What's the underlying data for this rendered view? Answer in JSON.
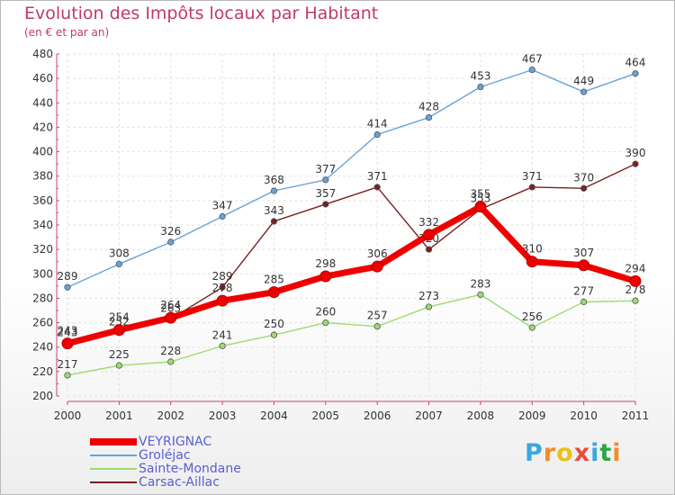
{
  "title": "Evolution des Impôts locaux par Habitant",
  "subtitle": "(en € et par an)",
  "logo": {
    "letters": [
      "P",
      "r",
      "o",
      "x",
      "i",
      "t",
      "i"
    ],
    "colors": [
      "#3aa7e0",
      "#f28c28",
      "#e8c21a",
      "#e74c3c",
      "#3aa7e0",
      "#2ea34b",
      "#f28c28"
    ]
  },
  "chart_data": {
    "type": "line",
    "title": "Evolution des Impôts locaux par Habitant",
    "subtitle": "(en € et par an)",
    "x": [
      "2000",
      "2001",
      "2002",
      "2003",
      "2004",
      "2005",
      "2006",
      "2007",
      "2008",
      "2009",
      "2010",
      "2011"
    ],
    "ylim": [
      200,
      480
    ],
    "yticks": [
      200,
      220,
      240,
      260,
      280,
      300,
      320,
      340,
      360,
      380,
      400,
      420,
      440,
      460,
      480
    ],
    "grid": true,
    "legend_position": "bottom-left",
    "series": [
      {
        "name": "Groléjac",
        "color": "#6aa3d5",
        "values": [
          289,
          308,
          326,
          347,
          368,
          377,
          414,
          428,
          453,
          467,
          449,
          464
        ],
        "labels": [
          "289",
          "308",
          "326",
          "347",
          "368",
          "377",
          "414",
          "428",
          "453",
          "467",
          "449",
          "464"
        ]
      },
      {
        "name": "Carsac-Aillac",
        "color": "#7a2020",
        "values": [
          243,
          252,
          263,
          289,
          343,
          357,
          371,
          320,
          353,
          371,
          370,
          390
        ],
        "labels": [
          "243",
          "252",
          "263",
          "289",
          "343",
          "357",
          "371",
          "320",
          "353",
          "371",
          "370",
          "390"
        ]
      },
      {
        "name": "Sainte-Mondane",
        "color": "#9ddb6f",
        "values": [
          217,
          225,
          228,
          241,
          250,
          260,
          257,
          273,
          283,
          256,
          277,
          278
        ],
        "labels": [
          "217",
          "225",
          "228",
          "241",
          "250",
          "260",
          "257",
          "273",
          "283",
          "256",
          "277",
          "278"
        ]
      },
      {
        "name": "VEYRIGNAC",
        "color": "#ee0000",
        "values": [
          243,
          254,
          264,
          278,
          285,
          298,
          306,
          332,
          355,
          310,
          307,
          294
        ],
        "labels": [
          "243",
          "254",
          "264",
          "278",
          "285",
          "298",
          "306",
          "332",
          "355",
          "310",
          "307",
          "294"
        ]
      }
    ],
    "legend": [
      {
        "name": "VEYRIGNAC",
        "color": "#ee0000",
        "thickness": 8
      },
      {
        "name": "Groléjac",
        "color": "#6aa3d5",
        "thickness": 2
      },
      {
        "name": "Sainte-Mondane",
        "color": "#9ddb6f",
        "thickness": 2
      },
      {
        "name": "Carsac-Aillac",
        "color": "#7a2020",
        "thickness": 2
      }
    ]
  }
}
